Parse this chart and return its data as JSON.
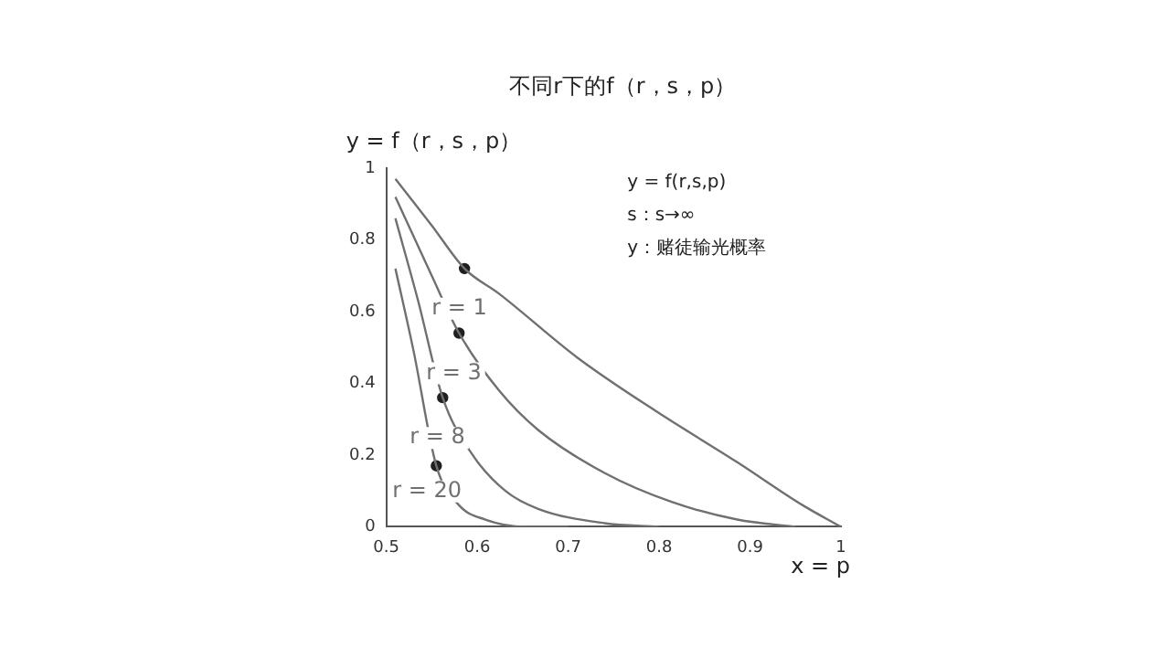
{
  "chart_data": {
    "type": "line",
    "title": "不同r下的f（r，s，p）",
    "ylabel": "y = f（r，s，p）",
    "xlabel": "x = p",
    "annotations": [
      "y = f(r,s,p)",
      "s：s→∞",
      "y：赌徒输光概率"
    ],
    "xlim": [
      0.5,
      1
    ],
    "xticks": [
      0.5,
      0.6,
      0.7,
      0.8,
      0.9,
      1
    ],
    "ylim": [
      0,
      1
    ],
    "yticks": [
      0,
      0.2,
      0.4,
      0.6,
      0.8,
      1
    ],
    "grid": false,
    "legend": false,
    "marker": "none",
    "line_style": "solid",
    "series": [
      {
        "name": "r = 1",
        "color": "#707070",
        "x": [
          0.51,
          0.55,
          0.586,
          0.624,
          0.711,
          0.798,
          0.886,
          0.958,
          1
        ],
        "values": [
          0.97,
          0.84,
          0.72,
          0.65,
          0.47,
          0.32,
          0.18,
          0.06,
          0
        ]
      },
      {
        "name": "r = 3",
        "color": "#707070",
        "x": [
          0.51,
          0.55,
          0.58,
          0.624,
          0.667,
          0.74,
          0.813,
          0.886,
          0.95
        ],
        "values": [
          0.92,
          0.7,
          0.54,
          0.38,
          0.27,
          0.15,
          0.07,
          0.02,
          0
        ]
      },
      {
        "name": "r = 8",
        "color": "#707070",
        "x": [
          0.51,
          0.535,
          0.562,
          0.595,
          0.631,
          0.667,
          0.74,
          0.8
        ],
        "values": [
          0.86,
          0.63,
          0.36,
          0.2,
          0.1,
          0.05,
          0.01,
          0
        ]
      },
      {
        "name": "r = 20",
        "color": "#707070",
        "x": [
          0.51,
          0.53,
          0.555,
          0.58,
          0.609,
          0.653,
          0.7
        ],
        "values": [
          0.72,
          0.49,
          0.17,
          0.06,
          0.02,
          0,
          0
        ]
      },
      {
        "type": "scatter",
        "color": "#202020",
        "marker": "circle",
        "x": [
          0.586,
          0.58,
          0.562,
          0.555
        ],
        "values": [
          0.72,
          0.54,
          0.36,
          0.17
        ]
      }
    ]
  }
}
